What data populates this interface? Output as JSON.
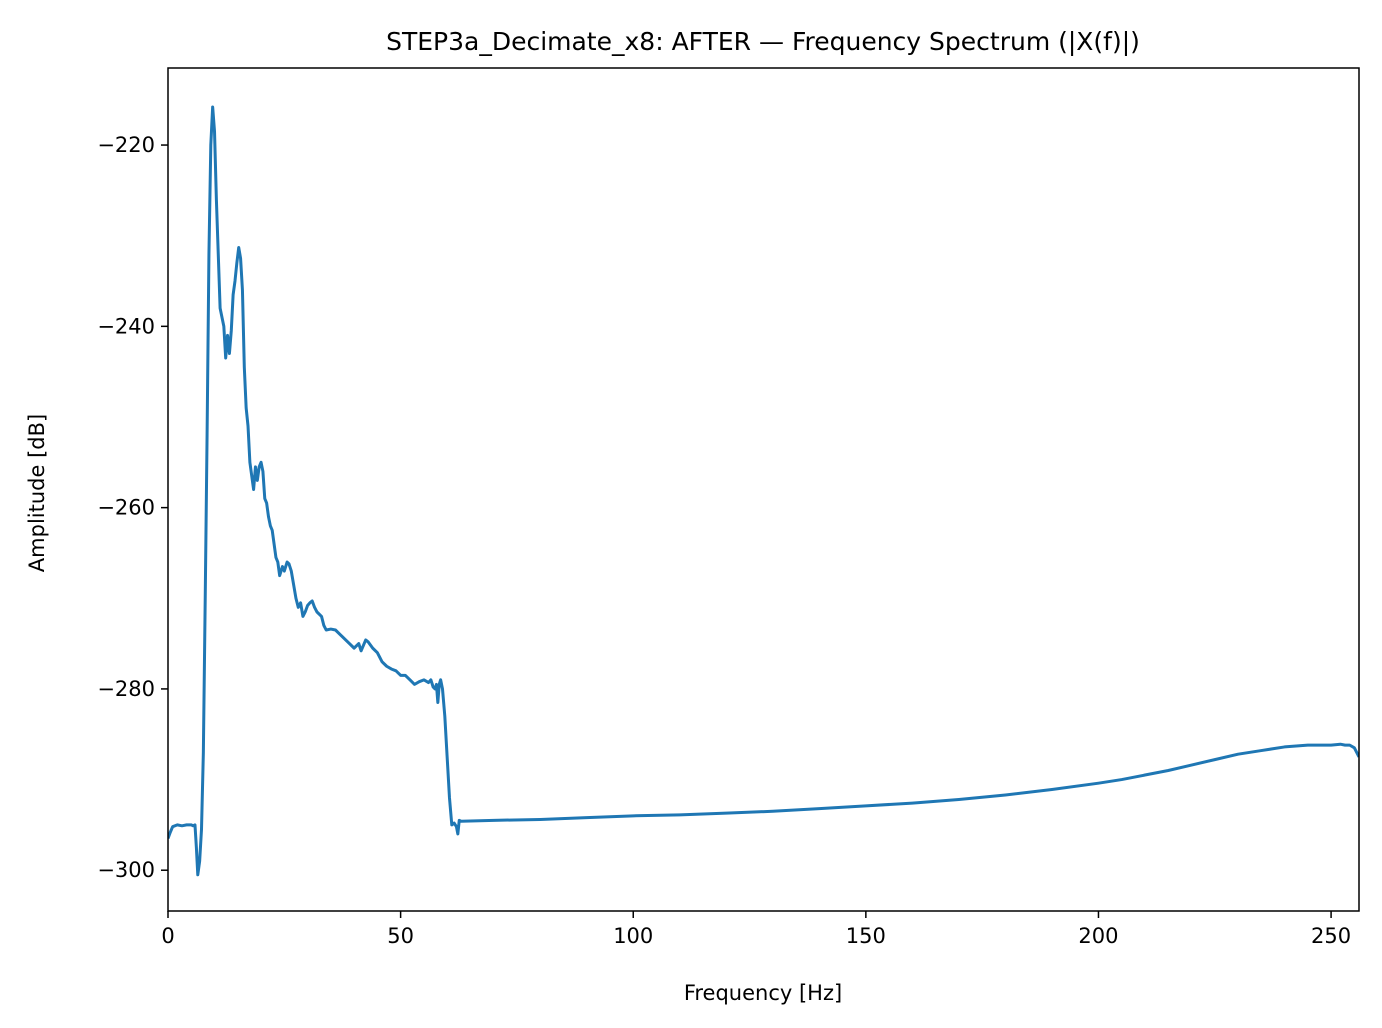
{
  "chart_data": {
    "type": "line",
    "title": "STEP3a_Decimate_x8: AFTER — Frequency Spectrum (|X(f)|)",
    "xlabel": "Frequency [Hz]",
    "ylabel": "Amplitude [dB]",
    "xlim": [
      0,
      256
    ],
    "ylim": [
      -304.5,
      -211.5
    ],
    "xticks": [
      0,
      50,
      100,
      150,
      200,
      250
    ],
    "xtick_labels": [
      "0",
      "50",
      "100",
      "150",
      "200",
      "250"
    ],
    "yticks": [
      -300,
      -280,
      -260,
      -240,
      -220
    ],
    "ytick_labels": [
      "−300",
      "−280",
      "−260",
      "−240",
      "−220"
    ],
    "grid": false,
    "series": [
      {
        "name": "spectrum",
        "color": "#1f77b4",
        "x": [
          0,
          0.5,
          1,
          2,
          3,
          4,
          5,
          5.4,
          5.8,
          6.1,
          6.4,
          6.8,
          7.2,
          7.6,
          8.0,
          8.4,
          8.8,
          9.2,
          9.6,
          10.0,
          10.4,
          10.8,
          11.2,
          11.6,
          12.0,
          12.4,
          12.8,
          13.2,
          13.6,
          14.0,
          14.4,
          14.8,
          15.2,
          15.6,
          16.0,
          16.4,
          16.8,
          17.2,
          17.6,
          18.0,
          18.4,
          18.8,
          19.2,
          19.6,
          20.0,
          20.4,
          20.8,
          21.2,
          21.6,
          22.0,
          22.4,
          22.8,
          23.2,
          23.6,
          24.0,
          24.6,
          25.0,
          25.6,
          26.0,
          26.5,
          27.0,
          27.5,
          28.0,
          28.5,
          29.0,
          29.5,
          30.0,
          30.5,
          31.0,
          31.5,
          32.0,
          33.0,
          33.5,
          34.0,
          35.0,
          36.0,
          37.0,
          38.0,
          39.0,
          40.0,
          41.0,
          41.5,
          42.0,
          42.5,
          43.0,
          44.0,
          45.0,
          46.0,
          47.0,
          48.0,
          49.0,
          50.0,
          51.0,
          52.0,
          53.0,
          54.0,
          55.0,
          56.0,
          56.5,
          57.0,
          57.4,
          57.7,
          58.0,
          58.3,
          58.6,
          59.0,
          59.5,
          60.0,
          60.5,
          61.0,
          61.5,
          62.0,
          62.3,
          62.6,
          63.0,
          70,
          80,
          90,
          100,
          110,
          120,
          130,
          140,
          150,
          160,
          170,
          180,
          190,
          200,
          205,
          210,
          215,
          220,
          225,
          230,
          235,
          240,
          245,
          250,
          252,
          253,
          254,
          255,
          256
        ],
        "y": [
          -296.5,
          -295.8,
          -295.2,
          -295.0,
          -295.1,
          -295.0,
          -295.0,
          -295.1,
          -295.0,
          -297.5,
          -300.5,
          -299.0,
          -295.5,
          -287.0,
          -270.0,
          -252.0,
          -232.0,
          -220.0,
          -215.8,
          -218.5,
          -226.0,
          -232.0,
          -238.0,
          -239.0,
          -240.0,
          -243.5,
          -241.0,
          -243.0,
          -240.5,
          -236.5,
          -235.0,
          -233.0,
          -231.3,
          -232.5,
          -236.0,
          -244.5,
          -249.0,
          -251.0,
          -255.0,
          -256.5,
          -258.0,
          -255.5,
          -257.0,
          -255.5,
          -255.0,
          -256.0,
          -259.0,
          -259.5,
          -261.0,
          -262.0,
          -262.5,
          -264.0,
          -265.5,
          -266.0,
          -267.5,
          -266.5,
          -267.0,
          -266.0,
          -266.2,
          -267.0,
          -268.5,
          -270.0,
          -271.0,
          -270.5,
          -272.0,
          -271.5,
          -270.8,
          -270.5,
          -270.3,
          -271.0,
          -271.5,
          -272.0,
          -273.0,
          -273.5,
          -273.4,
          -273.5,
          -274.0,
          -274.5,
          -275.0,
          -275.5,
          -275.0,
          -275.8,
          -275.2,
          -274.6,
          -274.8,
          -275.5,
          -276.0,
          -277.0,
          -277.5,
          -277.8,
          -278.0,
          -278.5,
          -278.5,
          -279.0,
          -279.5,
          -279.2,
          -279.0,
          -279.3,
          -279.0,
          -279.8,
          -280.0,
          -279.5,
          -281.5,
          -279.5,
          -279.0,
          -280.0,
          -283.0,
          -287.5,
          -292.0,
          -295.0,
          -294.8,
          -295.2,
          -296.0,
          -294.5,
          -294.6,
          -294.5,
          -294.4,
          -294.2,
          -294.0,
          -293.9,
          -293.7,
          -293.5,
          -293.2,
          -292.9,
          -292.6,
          -292.2,
          -291.7,
          -291.1,
          -290.4,
          -290.0,
          -289.5,
          -289.0,
          -288.4,
          -287.8,
          -287.2,
          -286.8,
          -286.4,
          -286.2,
          -286.2,
          -286.1,
          -286.2,
          -286.2,
          -286.5,
          -287.5
        ]
      }
    ]
  }
}
